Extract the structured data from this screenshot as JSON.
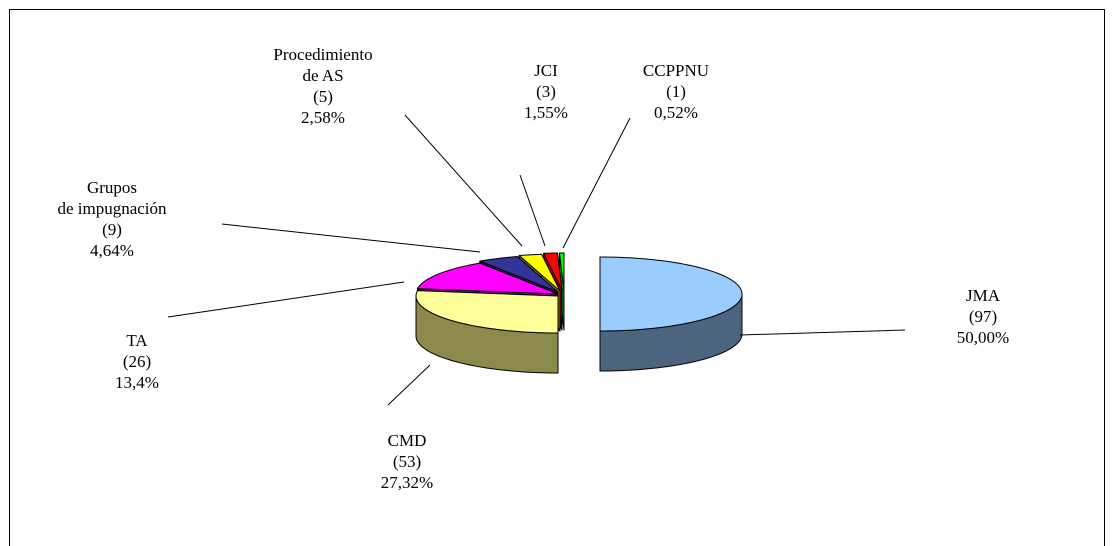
{
  "chart_data": {
    "type": "pie3d",
    "categories": [
      "JMA",
      "CMD",
      "TA",
      "Grupos\nde impugnación",
      "Procedimiento\nde AS",
      "JCI",
      "CCPPNU"
    ],
    "values": [
      97,
      53,
      26,
      9,
      5,
      3,
      1
    ],
    "value_labels": [
      "(97)",
      "(53)",
      "(26)",
      "(9)",
      "(5)",
      "(3)",
      "(1)"
    ],
    "percentages": [
      50.0,
      27.32,
      13.4,
      4.64,
      2.58,
      1.55,
      0.52
    ],
    "percentage_labels": [
      "50,00%",
      "27,32%",
      "13,4%",
      "4,64%",
      "2,58%",
      "1,55%",
      "0,52%"
    ],
    "colors": [
      "#99ccff",
      "#ffff99",
      "#ff00ff",
      "#333399",
      "#ffff00",
      "#ff0000",
      "#00ff00"
    ],
    "side_colors": [
      "#4d6480",
      "#8c8a4a",
      "#800080",
      "#1f1f66",
      "#8c8a00",
      "#990000",
      "#009900"
    ]
  }
}
